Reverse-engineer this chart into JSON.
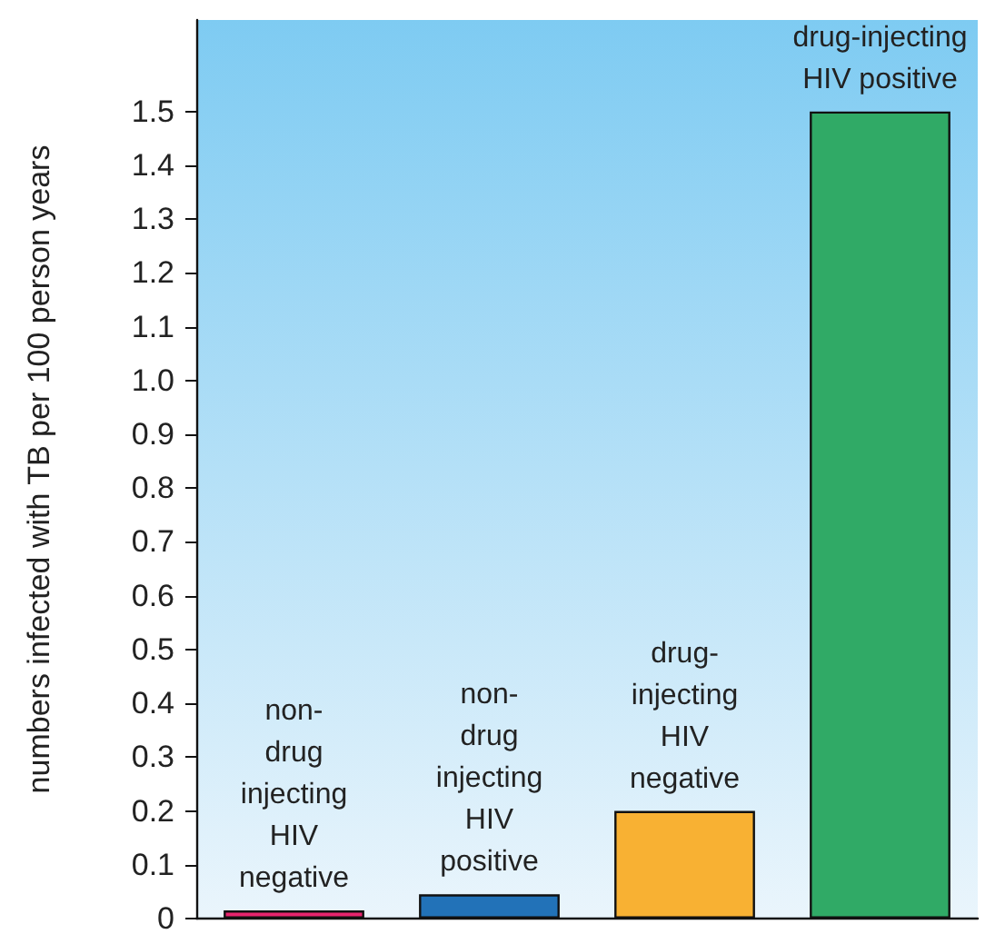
{
  "chart_data": {
    "type": "bar",
    "ylabel": "numbers infected with TB per 100 person years",
    "categories": [
      "non-\ndrug\ninjecting\nHIV\nnegative",
      "non-\ndrug\ninjecting\nHIV\npositive",
      "drug-\ninjecting\nHIV\nnegative",
      "drug-injecting\nHIV positive"
    ],
    "values": [
      0.015,
      0.045,
      0.2,
      1.5
    ],
    "colors": [
      "#e8246e",
      "#2272b8",
      "#f8b133",
      "#30aa66"
    ],
    "ylim": [
      0,
      1.67
    ],
    "yticks": [
      0,
      0.1,
      0.2,
      0.3,
      0.4,
      0.5,
      0.6,
      0.7,
      0.8,
      0.9,
      {
        "value": 1,
        "label": "1.0"
      },
      1.1,
      1.2,
      1.3,
      1.4,
      1.5
    ],
    "tick_labels": "y"
  }
}
